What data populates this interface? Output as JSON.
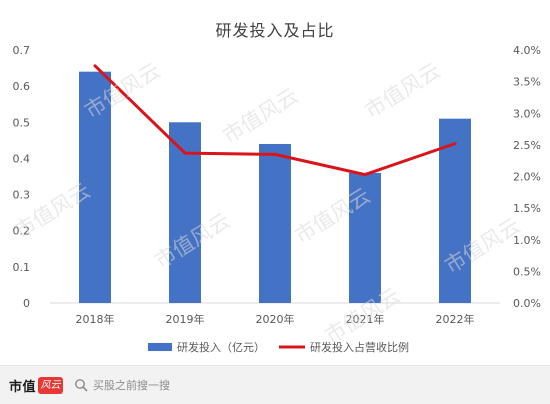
{
  "chart_data": {
    "type": "bar",
    "title": "研发投入及占比",
    "categories": [
      "2018年",
      "2019年",
      "2020年",
      "2021年",
      "2022年"
    ],
    "series": [
      {
        "name": "研发投入（亿元）",
        "type": "bar",
        "axis": "left",
        "color": "#4472c4",
        "values": [
          0.64,
          0.5,
          0.44,
          0.36,
          0.51
        ]
      },
      {
        "name": "研发投入占营收比例",
        "type": "line",
        "axis": "right",
        "color": "#d9141b",
        "values": [
          0.0375,
          0.0237,
          0.0235,
          0.0203,
          0.0252
        ]
      }
    ],
    "ylim_left": [
      0,
      0.7
    ],
    "yticks_left": [
      "0",
      "0.1",
      "0.2",
      "0.3",
      "0.4",
      "0.5",
      "0.6",
      "0.7"
    ],
    "ylim_right": [
      0,
      0.04
    ],
    "yticks_right": [
      "0.0%",
      "0.5%",
      "1.0%",
      "1.5%",
      "2.0%",
      "2.5%",
      "3.0%",
      "3.5%",
      "4.0%"
    ],
    "grid": false,
    "legend_position": "bottom"
  },
  "watermark": {
    "text": "市值风云"
  },
  "footer": {
    "brand_name": "市值",
    "brand_logo_text": "风云",
    "search_text": "买股之前搜一搜",
    "search_icon": "search-icon"
  }
}
